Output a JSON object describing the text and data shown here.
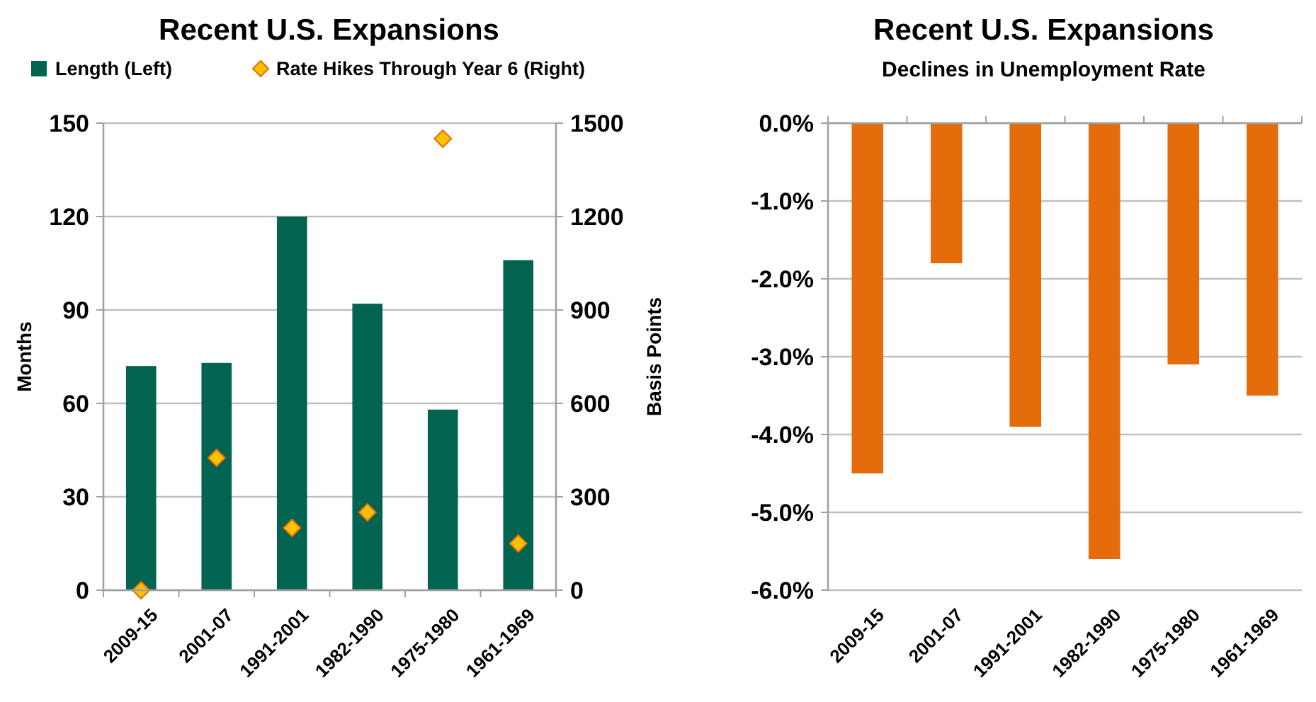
{
  "chart_data": [
    {
      "type": "bar",
      "title": "Recent U.S. Expansions",
      "categories": [
        "2009-15",
        "2001-07",
        "1991-2001",
        "1982-1990",
        "1975-1980",
        "1961-1969"
      ],
      "series": [
        {
          "name": "Length (Left)",
          "type": "bar",
          "color": "#006450",
          "values": [
            72,
            73,
            120,
            92,
            58,
            106
          ]
        },
        {
          "name": "Rate Hikes Through Year 6 (Right)",
          "type": "scatter",
          "axis": "y2",
          "color": "#ffc000",
          "values": [
            0,
            425,
            200,
            250,
            1450,
            150
          ]
        }
      ],
      "ylabel": "Months",
      "y2label": "Basis Points",
      "ylim": [
        0,
        150
      ],
      "yticks": [
        0,
        30,
        60,
        90,
        120,
        150
      ],
      "y2lim": [
        0,
        1500
      ],
      "y2ticks": [
        0,
        300,
        600,
        900,
        1200,
        1500
      ],
      "grid": "y",
      "legend": "top",
      "marker": "diamond"
    },
    {
      "type": "bar",
      "title": "Recent U.S. Expansions",
      "subtitle": "Declines in Unemployment Rate",
      "categories": [
        "2009-15",
        "2001-07",
        "1991-2001",
        "1982-1990",
        "1975-1980",
        "1961-1969"
      ],
      "series": [
        {
          "color": "#e46c0a",
          "values": [
            -4.5,
            -1.8,
            -3.9,
            -5.6,
            -3.1,
            -3.5
          ]
        }
      ],
      "ylim": [
        -6,
        0
      ],
      "yticks": [
        {
          "value": -6,
          "label": "-6.0%"
        },
        {
          "value": -5,
          "label": "-5.0%"
        },
        {
          "value": -4,
          "label": "-4.0%"
        },
        {
          "value": -3,
          "label": "-3.0%"
        },
        {
          "value": -2,
          "label": "-2.0%"
        },
        {
          "value": -1,
          "label": "-1.0%"
        },
        {
          "value": 0,
          "label": "0.0%"
        }
      ],
      "grid": "y"
    }
  ]
}
